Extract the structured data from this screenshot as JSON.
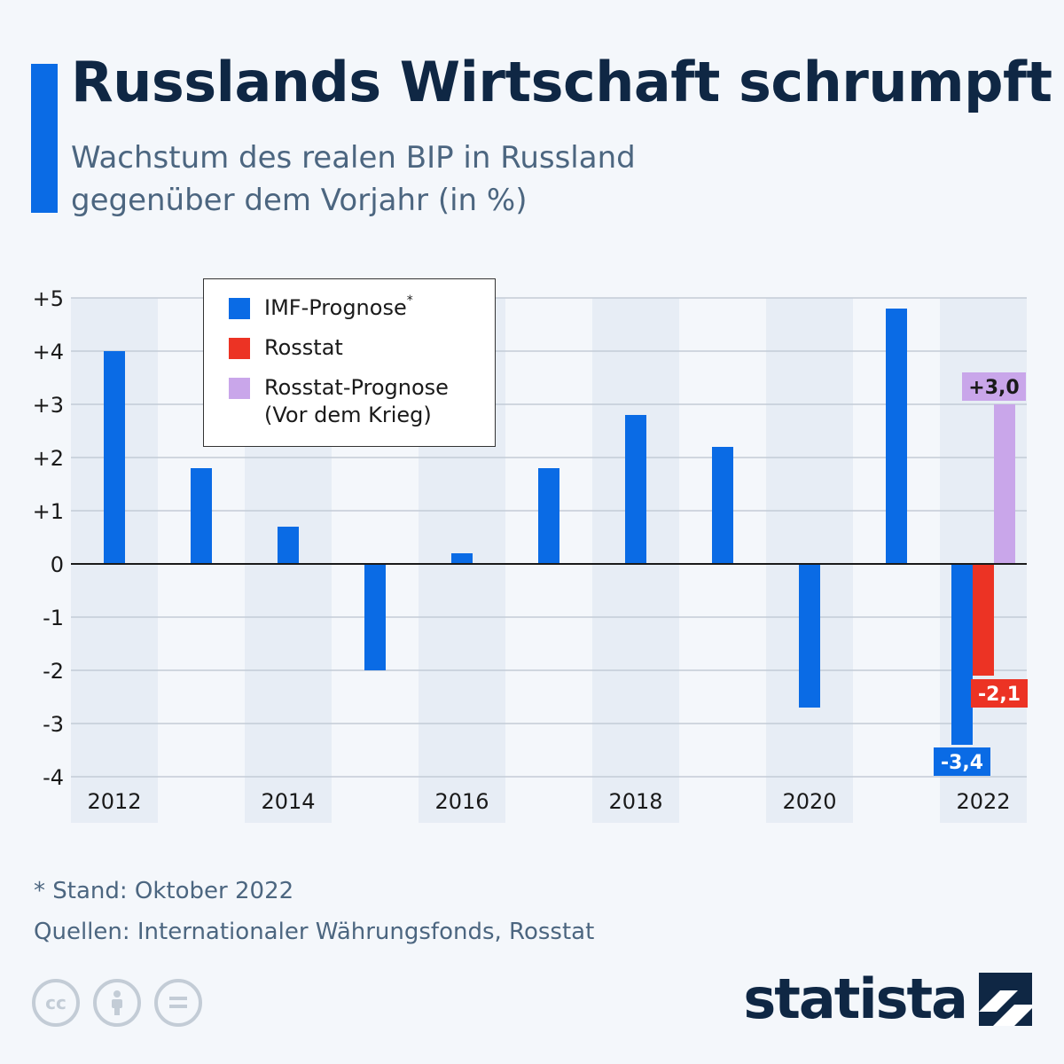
{
  "header": {
    "title": "Russlands Wirtschaft schrumpft",
    "subtitle_line1": "Wachstum des realen BIP in Russland",
    "subtitle_line2": "gegenüber dem Vorjahr (in %)"
  },
  "colors": {
    "accent": "#0a6be5",
    "imf": "#0a6be5",
    "rosstat": "#ec3324",
    "rosstat_forecast": "#c9a6ea",
    "title": "#0f2744",
    "band": "#e7edf5"
  },
  "legend": {
    "imf_label": "IMF-Prognose",
    "imf_marker": "*",
    "rosstat_label": "Rosstat",
    "forecast_label_line1": "Rosstat-Prognose",
    "forecast_label_line2": "(Vor dem Krieg)"
  },
  "chart_data": {
    "type": "bar",
    "categories": [
      "2012",
      "2013",
      "2014",
      "2015",
      "2016",
      "2017",
      "2018",
      "2019",
      "2020",
      "2021",
      "2022"
    ],
    "x_tick_labels": [
      "2012",
      "2014",
      "2016",
      "2018",
      "2020",
      "2022"
    ],
    "y_tick_labels": [
      "+5",
      "+4",
      "+3",
      "+2",
      "+1",
      "0",
      "-1",
      "-2",
      "-3",
      "-4"
    ],
    "ylim": [
      -4,
      5
    ],
    "grid": true,
    "legend_position": "top-left",
    "series": [
      {
        "name": "IMF-Prognose*",
        "values": [
          4.0,
          1.8,
          0.7,
          -2.0,
          0.2,
          1.8,
          2.8,
          2.2,
          -2.7,
          4.8,
          -3.4
        ]
      },
      {
        "name": "Rosstat",
        "values": [
          null,
          null,
          null,
          null,
          null,
          null,
          null,
          null,
          null,
          null,
          -2.1
        ]
      },
      {
        "name": "Rosstat-Prognose (Vor dem Krieg)",
        "values": [
          null,
          null,
          null,
          null,
          null,
          null,
          null,
          null,
          null,
          null,
          3.0
        ]
      }
    ],
    "data_labels": {
      "imf_2022": "-3,4",
      "rosstat_2022": "-2,1",
      "forecast_2022": "+3,0"
    }
  },
  "footer": {
    "note": "* Stand: Oktober 2022",
    "sources": "Quellen: Internationaler Währungsfonds, Rosstat",
    "brand": "statista",
    "cc_icons": [
      "cc-icon",
      "attribution-icon",
      "no-derivatives-icon"
    ]
  }
}
